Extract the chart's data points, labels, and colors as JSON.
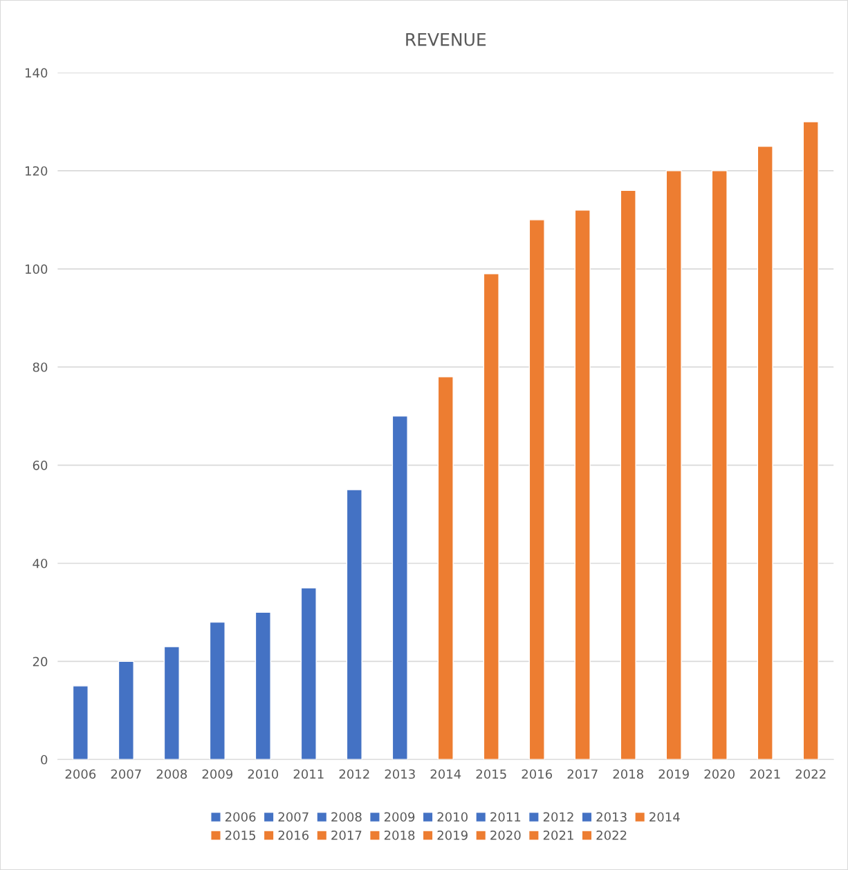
{
  "chart_data": {
    "type": "bar",
    "title": "REVENUE",
    "categories": [
      "2006",
      "2007",
      "2008",
      "2009",
      "2010",
      "2011",
      "2012",
      "2013",
      "2014",
      "2015",
      "2016",
      "2017",
      "2018",
      "2019",
      "2020",
      "2021",
      "2022"
    ],
    "series": [
      {
        "name": "2006",
        "color": "#4472c4",
        "values": [
          15,
          null,
          null,
          null,
          null,
          null,
          null,
          null,
          null,
          null,
          null,
          null,
          null,
          null,
          null,
          null,
          null
        ]
      },
      {
        "name": "2007",
        "color": "#4472c4",
        "values": [
          null,
          20,
          null,
          null,
          null,
          null,
          null,
          null,
          null,
          null,
          null,
          null,
          null,
          null,
          null,
          null,
          null
        ]
      },
      {
        "name": "2008",
        "color": "#4472c4",
        "values": [
          null,
          null,
          23,
          null,
          null,
          null,
          null,
          null,
          null,
          null,
          null,
          null,
          null,
          null,
          null,
          null,
          null
        ]
      },
      {
        "name": "2009",
        "color": "#4472c4",
        "values": [
          null,
          null,
          null,
          28,
          null,
          null,
          null,
          null,
          null,
          null,
          null,
          null,
          null,
          null,
          null,
          null,
          null
        ]
      },
      {
        "name": "2010",
        "color": "#4472c4",
        "values": [
          null,
          null,
          null,
          null,
          30,
          null,
          null,
          null,
          null,
          null,
          null,
          null,
          null,
          null,
          null,
          null,
          null
        ]
      },
      {
        "name": "2011",
        "color": "#4472c4",
        "values": [
          null,
          null,
          null,
          null,
          null,
          35,
          null,
          null,
          null,
          null,
          null,
          null,
          null,
          null,
          null,
          null,
          null
        ]
      },
      {
        "name": "2012",
        "color": "#4472c4",
        "values": [
          null,
          null,
          null,
          null,
          null,
          null,
          55,
          null,
          null,
          null,
          null,
          null,
          null,
          null,
          null,
          null,
          null
        ]
      },
      {
        "name": "2013",
        "color": "#4472c4",
        "values": [
          null,
          null,
          null,
          null,
          null,
          null,
          null,
          70,
          null,
          null,
          null,
          null,
          null,
          null,
          null,
          null,
          null
        ]
      },
      {
        "name": "2014",
        "color": "#ed7d31",
        "values": [
          null,
          null,
          null,
          null,
          null,
          null,
          null,
          null,
          78,
          null,
          null,
          null,
          null,
          null,
          null,
          null,
          null
        ]
      },
      {
        "name": "2015",
        "color": "#ed7d31",
        "values": [
          null,
          null,
          null,
          null,
          null,
          null,
          null,
          null,
          null,
          99,
          null,
          null,
          null,
          null,
          null,
          null,
          null
        ]
      },
      {
        "name": "2016",
        "color": "#ed7d31",
        "values": [
          null,
          null,
          null,
          null,
          null,
          null,
          null,
          null,
          null,
          null,
          110,
          null,
          null,
          null,
          null,
          null,
          null
        ]
      },
      {
        "name": "2017",
        "color": "#ed7d31",
        "values": [
          null,
          null,
          null,
          null,
          null,
          null,
          null,
          null,
          null,
          null,
          null,
          112,
          null,
          null,
          null,
          null,
          null
        ]
      },
      {
        "name": "2018",
        "color": "#ed7d31",
        "values": [
          null,
          null,
          null,
          null,
          null,
          null,
          null,
          null,
          null,
          null,
          null,
          null,
          116,
          null,
          null,
          null,
          null
        ]
      },
      {
        "name": "2019",
        "color": "#ed7d31",
        "values": [
          null,
          null,
          null,
          null,
          null,
          null,
          null,
          null,
          null,
          null,
          null,
          null,
          null,
          120,
          null,
          null,
          null
        ]
      },
      {
        "name": "2020",
        "color": "#ed7d31",
        "values": [
          null,
          null,
          null,
          null,
          null,
          null,
          null,
          null,
          null,
          null,
          null,
          null,
          null,
          null,
          120,
          null,
          null
        ]
      },
      {
        "name": "2021",
        "color": "#ed7d31",
        "values": [
          null,
          null,
          null,
          null,
          null,
          null,
          null,
          null,
          null,
          null,
          null,
          null,
          null,
          null,
          null,
          125,
          null
        ]
      },
      {
        "name": "2022",
        "color": "#ed7d31",
        "values": [
          null,
          null,
          null,
          null,
          null,
          null,
          null,
          null,
          null,
          null,
          null,
          null,
          null,
          null,
          null,
          null,
          130
        ]
      }
    ],
    "ylim": [
      0,
      140
    ],
    "yticks": [
      0,
      20,
      40,
      60,
      80,
      100,
      120,
      140
    ],
    "grid": "y",
    "legend": "bottom"
  }
}
